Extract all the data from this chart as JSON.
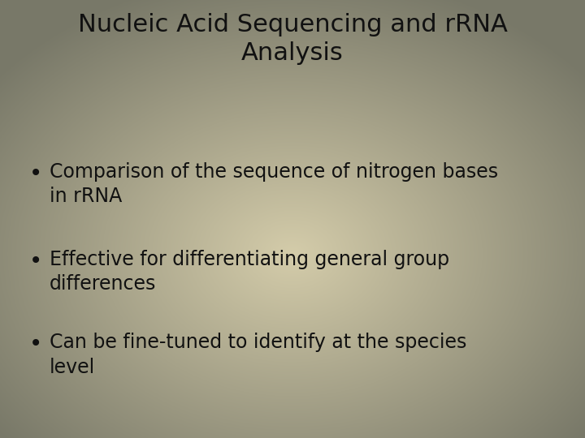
{
  "title_line1": "Nucleic Acid Sequencing and rRNA",
  "title_line2": "Analysis",
  "title_fontsize": 22,
  "title_color": "#111111",
  "bullet_points": [
    "Comparison of the sequence of nitrogen bases\nin rRNA",
    "Effective for differentiating general group\ndifferences",
    "Can be fine-tuned to identify at the species\nlevel"
  ],
  "bullet_fontsize": 17,
  "bullet_color": "#111111",
  "bg_color_outer": "#787868",
  "bg_color_inner": "#d4ccaa",
  "bullet_symbol": "•",
  "fig_width": 7.2,
  "fig_height": 5.4,
  "fig_dpi": 100
}
